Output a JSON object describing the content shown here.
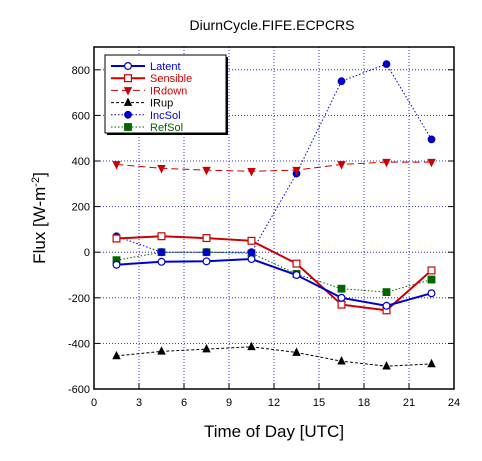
{
  "chart_data": {
    "type": "line",
    "title": "DiurnCycle.FIFE.ECPCRS",
    "xlabel": "Time of Day [UTC]",
    "ylabel": "Flux [W-m",
    "ylabel_sup": "-2",
    "ylabel_end": "]",
    "xlim": [
      0,
      24
    ],
    "ylim": [
      -600,
      900
    ],
    "xticks": [
      "0",
      "3",
      "6",
      "9",
      "12",
      "15",
      "18",
      "21",
      "24"
    ],
    "yticks": [
      "-600",
      "-400",
      "-200",
      "0",
      "200",
      "400",
      "600",
      "800"
    ],
    "grid": true,
    "legend_position": "top-left",
    "x": [
      1.5,
      4.5,
      7.5,
      10.5,
      13.5,
      16.5,
      19.5,
      22.5
    ],
    "series": [
      {
        "name": "Latent",
        "values": [
          -55,
          -42,
          -40,
          -30,
          -100,
          -200,
          -235,
          -180
        ],
        "color": "#0000cc",
        "dash": "solid",
        "marker": "open-circle",
        "width": 2
      },
      {
        "name": "Sensible",
        "values": [
          60,
          70,
          62,
          50,
          -50,
          -230,
          -255,
          -80
        ],
        "color": "#cc0000",
        "dash": "solid",
        "marker": "open-square",
        "width": 2
      },
      {
        "name": "IRdown",
        "values": [
          385,
          368,
          360,
          355,
          360,
          385,
          395,
          395
        ],
        "color": "#cc0000",
        "dash": "long",
        "marker": "triangle-down",
        "width": 1
      },
      {
        "name": "IRup",
        "values": [
          -455,
          -435,
          -425,
          -415,
          -440,
          -478,
          -500,
          -490
        ],
        "color": "#000000",
        "dash": "short",
        "marker": "triangle-up",
        "width": 1
      },
      {
        "name": "IncSol",
        "values": [
          70,
          0,
          0,
          0,
          345,
          750,
          825,
          495
        ],
        "color": "#0000cc",
        "dash": "dot",
        "marker": "filled-circle",
        "width": 1
      },
      {
        "name": "RefSol",
        "values": [
          -35,
          0,
          0,
          -5,
          -95,
          -160,
          -175,
          -120
        ],
        "color": "#006600",
        "dash": "dot",
        "marker": "filled-square",
        "width": 1
      }
    ]
  }
}
